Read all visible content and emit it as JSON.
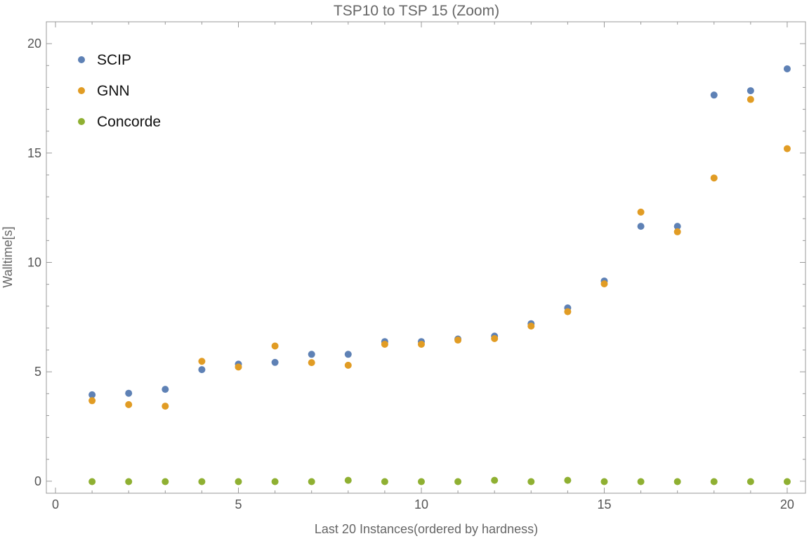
{
  "chart_data": {
    "type": "scatter",
    "title": "TSP10 to TSP 15 (Zoom)",
    "xlabel": "Last 20 Instances(ordered by hardness)",
    "ylabel": "Walltime[s]",
    "xlim": [
      -0.25,
      20.5
    ],
    "ylim": [
      -0.55,
      21.0
    ],
    "x_major_ticks": [
      0,
      5,
      10,
      15,
      20
    ],
    "y_major_ticks": [
      0,
      5,
      10,
      15,
      20
    ],
    "x_minor_step": 1,
    "y_minor_step": 1,
    "grid": false,
    "legend_position": "top-left",
    "x": [
      1,
      2,
      3,
      4,
      5,
      6,
      7,
      8,
      9,
      10,
      11,
      12,
      13,
      14,
      15,
      16,
      17,
      18,
      19,
      20
    ],
    "series": [
      {
        "name": "SCIP",
        "color": "#5e81b5",
        "values": [
          3.95,
          4.02,
          4.2,
          5.1,
          5.35,
          5.43,
          5.8,
          5.8,
          6.38,
          6.38,
          6.5,
          6.63,
          7.2,
          7.92,
          9.15,
          11.65,
          11.65,
          17.65,
          17.85,
          18.85
        ]
      },
      {
        "name": "GNN",
        "color": "#e19c24",
        "values": [
          3.68,
          3.5,
          3.43,
          5.48,
          5.22,
          6.18,
          5.42,
          5.3,
          6.26,
          6.26,
          6.45,
          6.52,
          7.09,
          7.75,
          9.02,
          12.3,
          11.4,
          13.86,
          17.45,
          15.2
        ]
      },
      {
        "name": "Concorde",
        "color": "#8fb032",
        "values": [
          -0.02,
          -0.02,
          -0.02,
          -0.02,
          -0.02,
          -0.02,
          -0.02,
          0.04,
          -0.02,
          -0.02,
          -0.02,
          0.04,
          -0.02,
          0.04,
          -0.02,
          -0.02,
          -0.02,
          -0.02,
          -0.02,
          -0.02
        ]
      }
    ]
  }
}
